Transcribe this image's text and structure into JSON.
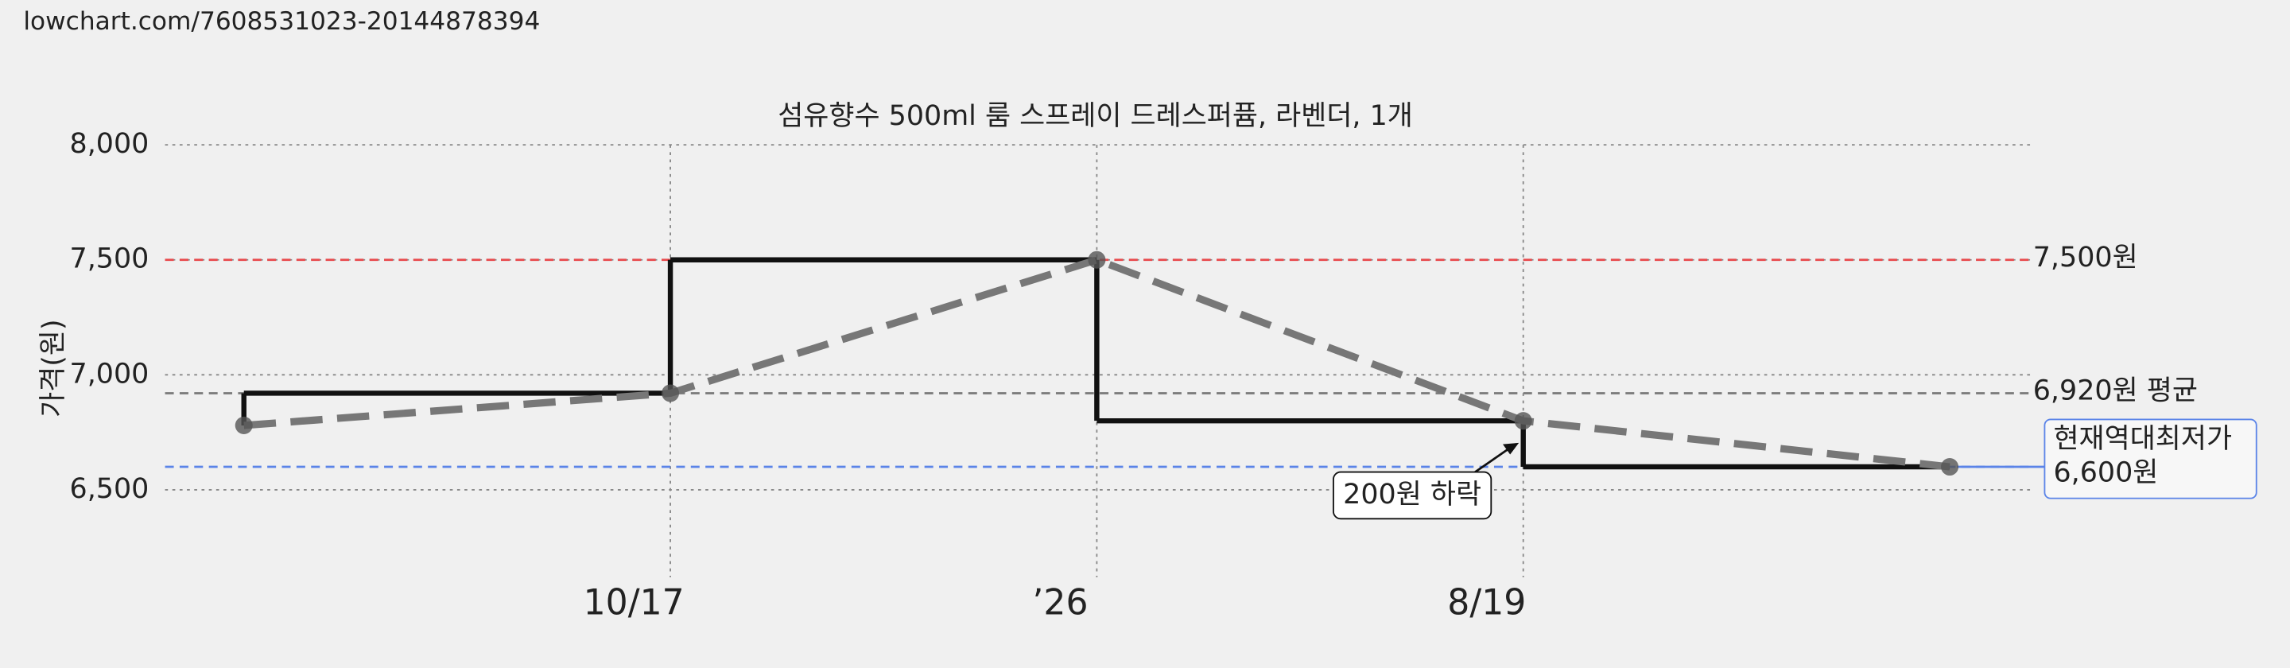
{
  "url": "lowchart.com/7608531023-20144878394",
  "chart_data": {
    "type": "line",
    "title": "섬유향수 500ml 룸 스프레이 드레스퍼퓸, 라벤더, 1개",
    "y_label": "가격(원)",
    "categories": [
      null,
      "10/17",
      "’26",
      "8/19",
      null
    ],
    "values": [
      6780,
      6920,
      7500,
      6800,
      6600
    ],
    "step_color": "#111111",
    "line_color": "#777777",
    "ylim": [
      6120,
      8000
    ],
    "yticks": [
      {
        "value": 6500,
        "label": "6,500"
      },
      {
        "value": 7000,
        "label": "7,000"
      },
      {
        "value": 7500,
        "label": "7,500"
      },
      {
        "value": 8000,
        "label": "8,000"
      }
    ],
    "grid": true,
    "reference_lines": [
      {
        "value": 7500,
        "label": "7,500원",
        "color": "#e8494c"
      },
      {
        "value": 6920,
        "label": "6,920원 평균",
        "color": "#7a7a7a"
      },
      {
        "value": 6600,
        "label_lines": [
          "현재역대최저가",
          "6,600원"
        ],
        "color": "#5b84e8"
      }
    ],
    "annotation": "200원 하락"
  }
}
